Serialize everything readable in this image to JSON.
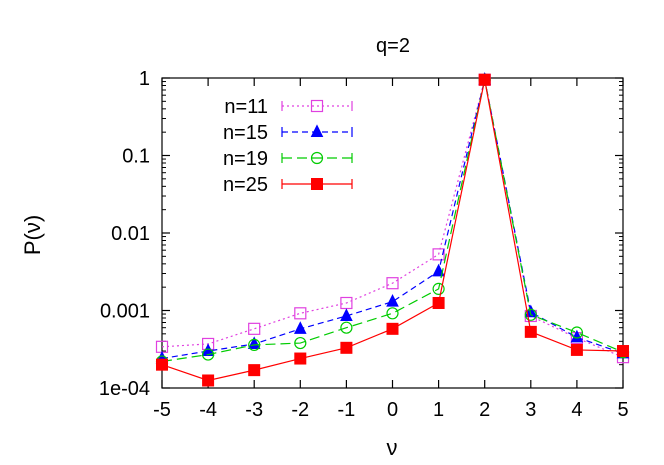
{
  "chart_data": {
    "type": "line",
    "title": "q=2",
    "xlabel": "ν",
    "ylabel": "P(ν)",
    "xlim": [
      -5,
      5
    ],
    "ylim": [
      0.0001,
      1
    ],
    "yscale": "log",
    "grid": false,
    "legend_position": "top-left",
    "x_ticks": [
      -5,
      -4,
      -3,
      -2,
      -1,
      0,
      1,
      2,
      3,
      4,
      5
    ],
    "x_tick_labels": [
      "-5",
      "-4",
      "-3",
      "-2",
      "-1",
      "0",
      "1",
      "2",
      "3",
      "4",
      "5"
    ],
    "y_ticks": [
      0.0001,
      0.001,
      0.01,
      0.1,
      1
    ],
    "y_tick_labels": [
      "1e-04",
      "0.001",
      "0.01",
      "0.1",
      "1"
    ],
    "x": [
      -5,
      -4,
      -3,
      -2,
      -1,
      0,
      1,
      2,
      3,
      4,
      5
    ],
    "series": [
      {
        "name": "n=11",
        "color": "#e040e0",
        "dash": "dotted",
        "marker": "open-square",
        "values": [
          0.00034,
          0.00037,
          0.00058,
          0.00092,
          0.00125,
          0.00225,
          0.0053,
          0.95,
          0.00085,
          0.00044,
          0.00025
        ]
      },
      {
        "name": "n=15",
        "color": "#0000ff",
        "dash": "dashed",
        "marker": "filled-triangle",
        "values": [
          0.00024,
          0.0003,
          0.00037,
          0.00058,
          0.00085,
          0.0013,
          0.0032,
          0.95,
          0.00095,
          0.00045,
          0.00028
        ]
      },
      {
        "name": "n=19",
        "color": "#00cc00",
        "dash": "long-dashed",
        "marker": "open-circle",
        "values": [
          0.00022,
          0.00027,
          0.00036,
          0.00038,
          0.0006,
          0.00092,
          0.0019,
          0.95,
          0.00088,
          0.00052,
          0.00029
        ]
      },
      {
        "name": "n=25",
        "color": "#ff0000",
        "dash": "solid",
        "marker": "filled-square",
        "values": [
          0.0002,
          0.000125,
          0.00017,
          0.00024,
          0.00033,
          0.00058,
          0.00125,
          0.95,
          0.00053,
          0.00031,
          0.0003
        ]
      }
    ]
  }
}
